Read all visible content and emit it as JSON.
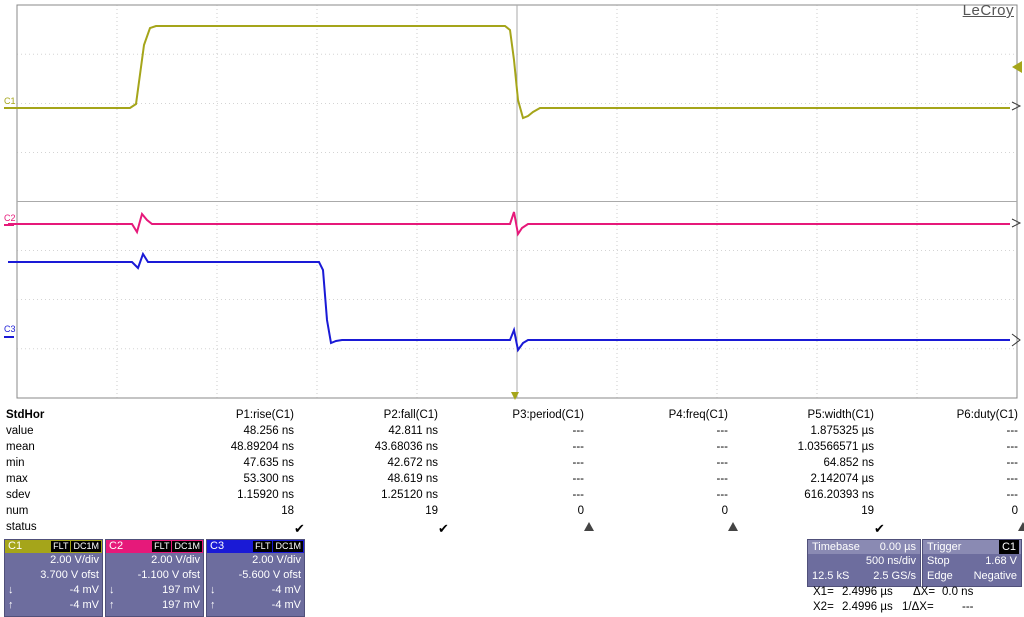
{
  "brand": "LeCroy",
  "channels_axis": [
    {
      "label": "C1",
      "color": "#a5a51a"
    },
    {
      "label": "C2",
      "color": "#e6197a"
    },
    {
      "label": "C3",
      "color": "#1a1ad6"
    }
  ],
  "measurements": {
    "row_label_header": "StdHor",
    "columns": [
      "P1:rise(C1)",
      "P2:fall(C1)",
      "P3:period(C1)",
      "P4:freq(C1)",
      "P5:width(C1)",
      "P6:duty(C1)"
    ],
    "rows": [
      {
        "label": "value",
        "cells": [
          "48.256 ns",
          "42.811 ns",
          "---",
          "---",
          "1.875325 µs",
          "---"
        ]
      },
      {
        "label": "mean",
        "cells": [
          "48.89204 ns",
          "43.68036 ns",
          "---",
          "---",
          "1.03566571 µs",
          "---"
        ]
      },
      {
        "label": "min",
        "cells": [
          "47.635 ns",
          "42.672 ns",
          "---",
          "---",
          "64.852 ns",
          "---"
        ]
      },
      {
        "label": "max",
        "cells": [
          "53.300 ns",
          "48.619 ns",
          "---",
          "---",
          "2.142074 µs",
          "---"
        ]
      },
      {
        "label": "sdev",
        "cells": [
          "1.15920 ns",
          "1.25120 ns",
          "---",
          "---",
          "616.20393 ns",
          "---"
        ]
      },
      {
        "label": "num",
        "cells": [
          "18",
          "19",
          "0",
          "0",
          "19",
          "0"
        ]
      }
    ],
    "status_label": "status",
    "status": [
      "ok",
      "ok",
      "warning",
      "warning",
      "ok",
      "warning"
    ]
  },
  "channel_boxes": [
    {
      "name": "C1",
      "color": "#a5a51a",
      "flags": [
        "FLT",
        "DC1M"
      ],
      "vdiv": "2.00 V/div",
      "offset": "3.700 V ofst",
      "down_label": "↓",
      "down_val": "-4 mV",
      "up_label": "↑",
      "up_val": "-4 mV"
    },
    {
      "name": "C2",
      "color": "#e6197a",
      "flags": [
        "FLT",
        "DC1M"
      ],
      "vdiv": "2.00 V/div",
      "offset": "-1.100 V ofst",
      "down_label": "↓",
      "down_val": "197 mV",
      "up_label": "↑",
      "up_val": "197 mV"
    },
    {
      "name": "C3",
      "color": "#1a1ad6",
      "flags": [
        "FLT",
        "DC1M"
      ],
      "vdiv": "2.00 V/div",
      "offset": "-5.600 V ofst",
      "down_label": "↓",
      "down_val": "-4 mV",
      "up_label": "↑",
      "up_val": "-4 mV"
    }
  ],
  "timebase": {
    "title": "Timebase",
    "delay": "0.00 µs",
    "tdiv": "500 ns/div",
    "samples": "12.5 kS",
    "rate": "2.5 GS/s"
  },
  "trigger": {
    "title": "Trigger",
    "source": "C1",
    "mode": "Stop",
    "level": "1.68 V",
    "type": "Edge",
    "slope": "Negative"
  },
  "cursors": {
    "x1_label": "X1=",
    "x1_val": "2.4996 µs",
    "dx_label": "ΔX=",
    "dx_val": "0.0 ns",
    "x2_label": "X2=",
    "x2_val": "2.4996 µs",
    "inv_dx_label": "1/ΔX=",
    "inv_dx_val": "---"
  }
}
